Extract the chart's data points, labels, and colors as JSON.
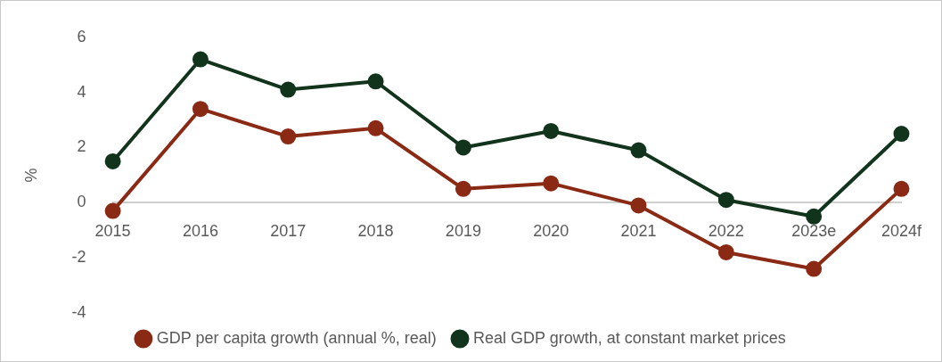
{
  "chart_data": {
    "type": "line",
    "ylabel": "%",
    "categories": [
      "2015",
      "2016",
      "2017",
      "2018",
      "2019",
      "2020",
      "2021",
      "2022",
      "2023e",
      "2024f"
    ],
    "series": [
      {
        "name": "GDP per capita growth (annual %, real)",
        "color": "#8b2a14",
        "values": [
          -0.3,
          3.4,
          2.4,
          2.7,
          0.5,
          0.7,
          -0.1,
          -1.8,
          -2.4,
          0.5
        ]
      },
      {
        "name": "Real GDP growth, at constant market prices",
        "color": "#12341c",
        "values": [
          1.5,
          5.2,
          4.1,
          4.4,
          2.0,
          2.6,
          1.9,
          0.1,
          -0.5,
          2.5
        ]
      }
    ],
    "ylim": [
      -4,
      6
    ],
    "yticks": [
      -4,
      -2,
      0,
      2,
      4,
      6
    ],
    "grid": false,
    "legend": "bottom",
    "marker": "circle",
    "line_style": "solid"
  }
}
